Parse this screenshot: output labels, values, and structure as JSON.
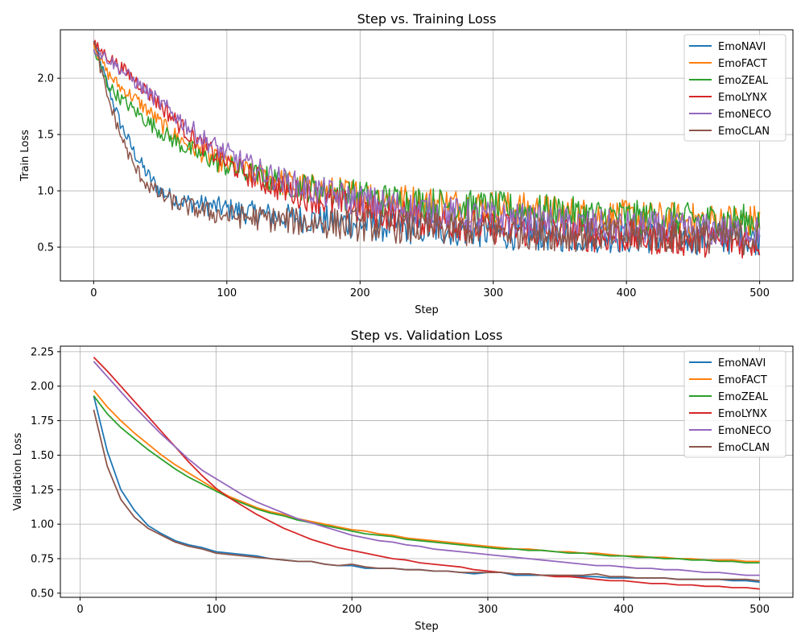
{
  "chart_data": [
    {
      "type": "line",
      "title": "Step vs. Training Loss",
      "xlabel": "Step",
      "ylabel": "Train Loss",
      "xlim": [
        -25,
        525
      ],
      "ylim": [
        0.2,
        2.43
      ],
      "xticks": [
        0,
        100,
        200,
        300,
        400,
        500
      ],
      "yticks": [
        0.5,
        1.0,
        1.5,
        2.0
      ],
      "xtick_labels": [
        "0",
        "100",
        "200",
        "300",
        "400",
        "500"
      ],
      "ytick_labels": [
        "0.5",
        "1.0",
        "1.5",
        "2.0"
      ],
      "grid": true,
      "legend_position": "top-right",
      "x": [
        0,
        10,
        20,
        30,
        40,
        50,
        60,
        70,
        80,
        90,
        100,
        120,
        140,
        160,
        180,
        200,
        220,
        240,
        260,
        280,
        300,
        320,
        340,
        360,
        380,
        400,
        420,
        440,
        460,
        480,
        500
      ],
      "noisy": true,
      "series": [
        {
          "name": "EmoNAVI",
          "color": "#1f77b4",
          "values": [
            2.33,
            1.95,
            1.6,
            1.35,
            1.15,
            1.0,
            0.93,
            0.9,
            0.88,
            0.86,
            0.84,
            0.8,
            0.77,
            0.75,
            0.73,
            0.71,
            0.69,
            0.67,
            0.66,
            0.65,
            0.63,
            0.62,
            0.61,
            0.6,
            0.6,
            0.59,
            0.59,
            0.58,
            0.58,
            0.58,
            0.58
          ]
        },
        {
          "name": "EmoFACT",
          "color": "#ff7f0e",
          "values": [
            2.3,
            2.05,
            1.92,
            1.83,
            1.72,
            1.6,
            1.5,
            1.42,
            1.35,
            1.28,
            1.23,
            1.15,
            1.08,
            1.03,
            0.99,
            0.96,
            0.93,
            0.91,
            0.89,
            0.87,
            0.86,
            0.84,
            0.82,
            0.8,
            0.78,
            0.77,
            0.76,
            0.75,
            0.74,
            0.74,
            0.73
          ]
        },
        {
          "name": "EmoZEAL",
          "color": "#2ca02c",
          "values": [
            2.25,
            1.95,
            1.82,
            1.72,
            1.62,
            1.53,
            1.45,
            1.38,
            1.32,
            1.27,
            1.22,
            1.14,
            1.08,
            1.03,
            0.99,
            0.95,
            0.92,
            0.9,
            0.88,
            0.86,
            0.85,
            0.83,
            0.82,
            0.8,
            0.78,
            0.77,
            0.76,
            0.75,
            0.74,
            0.74,
            0.73
          ]
        },
        {
          "name": "EmoLYNX",
          "color": "#d62728",
          "values": [
            2.3,
            2.2,
            2.1,
            2.0,
            1.88,
            1.76,
            1.64,
            1.52,
            1.42,
            1.33,
            1.25,
            1.12,
            1.02,
            0.95,
            0.89,
            0.84,
            0.8,
            0.76,
            0.73,
            0.7,
            0.67,
            0.65,
            0.63,
            0.61,
            0.6,
            0.59,
            0.58,
            0.57,
            0.56,
            0.55,
            0.55
          ]
        },
        {
          "name": "EmoNECO",
          "color": "#9467bd",
          "values": [
            2.26,
            2.18,
            2.08,
            1.98,
            1.88,
            1.78,
            1.68,
            1.58,
            1.48,
            1.4,
            1.33,
            1.2,
            1.1,
            1.02,
            0.96,
            0.91,
            0.87,
            0.84,
            0.81,
            0.78,
            0.76,
            0.74,
            0.72,
            0.7,
            0.69,
            0.68,
            0.67,
            0.66,
            0.65,
            0.64,
            0.63
          ]
        },
        {
          "name": "EmoCLAN",
          "color": "#8c564b",
          "values": [
            2.33,
            1.85,
            1.5,
            1.22,
            1.06,
            0.96,
            0.9,
            0.86,
            0.83,
            0.8,
            0.78,
            0.76,
            0.74,
            0.72,
            0.71,
            0.7,
            0.69,
            0.67,
            0.66,
            0.65,
            0.64,
            0.63,
            0.62,
            0.61,
            0.61,
            0.6,
            0.6,
            0.59,
            0.59,
            0.58,
            0.58
          ]
        }
      ]
    },
    {
      "type": "line",
      "title": "Step vs. Validation Loss",
      "xlabel": "Step",
      "ylabel": "Validation Loss",
      "xlim": [
        -14.5,
        524.5
      ],
      "ylim": [
        0.47,
        2.29
      ],
      "xticks": [
        0,
        100,
        200,
        300,
        400,
        500
      ],
      "yticks": [
        0.5,
        0.75,
        1.0,
        1.25,
        1.5,
        1.75,
        2.0,
        2.25
      ],
      "xtick_labels": [
        "0",
        "100",
        "200",
        "300",
        "400",
        "500"
      ],
      "ytick_labels": [
        "0.50",
        "0.75",
        "1.00",
        "1.25",
        "1.50",
        "1.75",
        "2.00",
        "2.25"
      ],
      "grid": true,
      "legend_position": "top-right",
      "x": [
        10,
        20,
        30,
        40,
        50,
        60,
        70,
        80,
        90,
        100,
        110,
        120,
        130,
        140,
        150,
        160,
        170,
        180,
        190,
        200,
        210,
        220,
        230,
        240,
        250,
        260,
        270,
        280,
        290,
        300,
        310,
        320,
        330,
        340,
        350,
        360,
        370,
        380,
        390,
        400,
        410,
        420,
        430,
        440,
        450,
        460,
        470,
        480,
        490,
        500
      ],
      "noisy": false,
      "series": [
        {
          "name": "EmoNAVI",
          "color": "#1f77b4",
          "values": [
            1.93,
            1.53,
            1.25,
            1.1,
            0.99,
            0.93,
            0.88,
            0.85,
            0.83,
            0.8,
            0.79,
            0.78,
            0.77,
            0.75,
            0.74,
            0.73,
            0.73,
            0.71,
            0.7,
            0.7,
            0.68,
            0.68,
            0.68,
            0.67,
            0.67,
            0.66,
            0.66,
            0.65,
            0.64,
            0.65,
            0.65,
            0.63,
            0.63,
            0.63,
            0.63,
            0.62,
            0.62,
            0.62,
            0.61,
            0.61,
            0.61,
            0.61,
            0.61,
            0.6,
            0.6,
            0.6,
            0.6,
            0.59,
            0.59,
            0.58
          ]
        },
        {
          "name": "EmoFACT",
          "color": "#ff7f0e",
          "values": [
            1.97,
            1.85,
            1.75,
            1.66,
            1.58,
            1.5,
            1.43,
            1.37,
            1.31,
            1.25,
            1.2,
            1.16,
            1.12,
            1.09,
            1.07,
            1.04,
            1.02,
            1.0,
            0.98,
            0.96,
            0.95,
            0.93,
            0.92,
            0.9,
            0.89,
            0.88,
            0.87,
            0.86,
            0.85,
            0.84,
            0.83,
            0.82,
            0.82,
            0.81,
            0.8,
            0.8,
            0.79,
            0.79,
            0.78,
            0.77,
            0.77,
            0.76,
            0.76,
            0.75,
            0.75,
            0.74,
            0.74,
            0.74,
            0.73,
            0.73
          ]
        },
        {
          "name": "EmoZEAL",
          "color": "#2ca02c",
          "values": [
            1.93,
            1.8,
            1.7,
            1.62,
            1.54,
            1.47,
            1.4,
            1.34,
            1.29,
            1.24,
            1.19,
            1.15,
            1.11,
            1.08,
            1.06,
            1.03,
            1.01,
            0.99,
            0.97,
            0.95,
            0.93,
            0.92,
            0.91,
            0.89,
            0.88,
            0.87,
            0.86,
            0.85,
            0.84,
            0.83,
            0.82,
            0.82,
            0.81,
            0.81,
            0.8,
            0.79,
            0.79,
            0.78,
            0.77,
            0.77,
            0.76,
            0.76,
            0.75,
            0.75,
            0.74,
            0.74,
            0.73,
            0.73,
            0.72,
            0.72
          ]
        },
        {
          "name": "EmoLYNX",
          "color": "#d62728",
          "values": [
            2.21,
            2.11,
            2.0,
            1.89,
            1.78,
            1.67,
            1.56,
            1.45,
            1.35,
            1.26,
            1.19,
            1.13,
            1.07,
            1.02,
            0.97,
            0.93,
            0.89,
            0.86,
            0.83,
            0.81,
            0.79,
            0.77,
            0.75,
            0.74,
            0.72,
            0.71,
            0.7,
            0.69,
            0.67,
            0.66,
            0.65,
            0.64,
            0.64,
            0.63,
            0.62,
            0.62,
            0.61,
            0.6,
            0.59,
            0.59,
            0.58,
            0.57,
            0.57,
            0.56,
            0.56,
            0.55,
            0.55,
            0.54,
            0.54,
            0.53
          ]
        },
        {
          "name": "EmoNECO",
          "color": "#9467bd",
          "values": [
            2.18,
            2.07,
            1.96,
            1.85,
            1.75,
            1.65,
            1.56,
            1.47,
            1.39,
            1.33,
            1.27,
            1.21,
            1.16,
            1.12,
            1.08,
            1.04,
            1.01,
            0.98,
            0.95,
            0.92,
            0.9,
            0.88,
            0.87,
            0.85,
            0.84,
            0.82,
            0.81,
            0.8,
            0.79,
            0.78,
            0.77,
            0.76,
            0.75,
            0.74,
            0.73,
            0.72,
            0.71,
            0.7,
            0.7,
            0.69,
            0.68,
            0.68,
            0.67,
            0.67,
            0.66,
            0.65,
            0.65,
            0.64,
            0.63,
            0.63
          ]
        },
        {
          "name": "EmoCLAN",
          "color": "#8c564b",
          "values": [
            1.83,
            1.42,
            1.18,
            1.05,
            0.97,
            0.92,
            0.87,
            0.84,
            0.82,
            0.79,
            0.78,
            0.77,
            0.76,
            0.75,
            0.74,
            0.73,
            0.73,
            0.71,
            0.7,
            0.71,
            0.69,
            0.68,
            0.68,
            0.67,
            0.67,
            0.66,
            0.66,
            0.65,
            0.65,
            0.65,
            0.65,
            0.64,
            0.64,
            0.63,
            0.63,
            0.63,
            0.63,
            0.64,
            0.62,
            0.62,
            0.61,
            0.61,
            0.61,
            0.6,
            0.6,
            0.6,
            0.6,
            0.6,
            0.6,
            0.59
          ]
        }
      ]
    }
  ]
}
